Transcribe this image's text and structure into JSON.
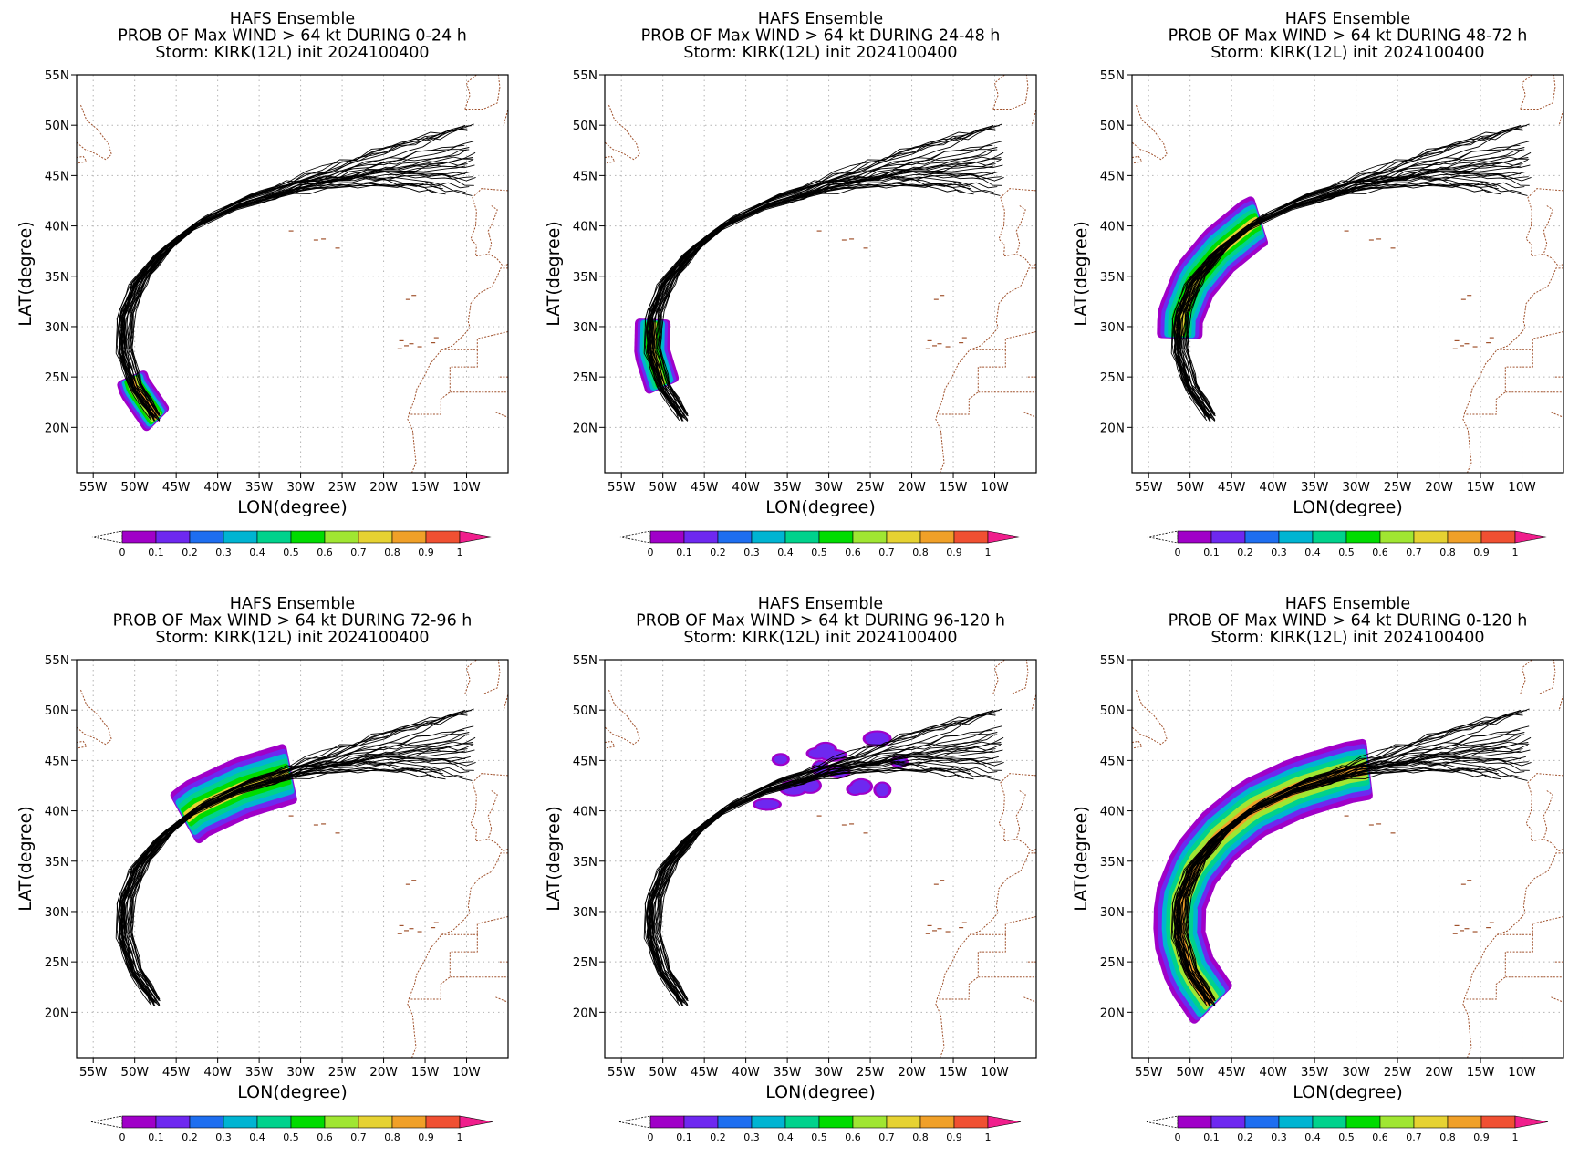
{
  "figure": {
    "panels": [
      {
        "title_lines": [
          "HAFS Ensemble",
          "PROB OF Max WIND > 64 kt DURING  0-24 h",
          "Storm: KIRK(12L) init 2024100400"
        ],
        "xlabel": "LON(degree)",
        "ylabel": "LAT(degree)"
      },
      {
        "title_lines": [
          "HAFS Ensemble",
          "PROB OF Max WIND > 64 kt DURING 24-48 h",
          "Storm: KIRK(12L) init 2024100400"
        ],
        "xlabel": "LON(degree)",
        "ylabel": "LAT(degree)"
      },
      {
        "title_lines": [
          "HAFS Ensemble",
          "PROB OF Max WIND > 64 kt DURING 48-72 h",
          "Storm: KIRK(12L) init 2024100400"
        ],
        "xlabel": "LON(degree)",
        "ylabel": "LAT(degree)"
      },
      {
        "title_lines": [
          "HAFS Ensemble",
          "PROB OF Max WIND > 64 kt DURING 72-96 h",
          "Storm: KIRK(12L) init 2024100400"
        ],
        "xlabel": "LON(degree)",
        "ylabel": "LAT(degree)"
      },
      {
        "title_lines": [
          "HAFS Ensemble",
          "PROB OF Max WIND > 64 kt DURING 96-120 h",
          "Storm: KIRK(12L) init 2024100400"
        ],
        "xlabel": "LON(degree)",
        "ylabel": "LAT(degree)"
      },
      {
        "title_lines": [
          "HAFS Ensemble",
          "PROB OF Max WIND > 64 kt DURING 0-120 h",
          "Storm: KIRK(12L) init 2024100400"
        ],
        "xlabel": "LON(degree)",
        "ylabel": "LAT(degree)"
      }
    ],
    "lon_ticks": [
      "55W",
      "50W",
      "45W",
      "40W",
      "35W",
      "30W",
      "25W",
      "20W",
      "15W",
      "10W"
    ],
    "lat_ticks": [
      "55N",
      "50N",
      "45N",
      "40N",
      "35N",
      "30N",
      "25N",
      "20N"
    ],
    "colorbar": {
      "labels": [
        "0",
        "0.1",
        "0.2",
        "0.3",
        "0.4",
        "0.5",
        "0.6",
        "0.7",
        "0.8",
        "0.9",
        "1"
      ],
      "colors": [
        "#a000c8",
        "#6e28f0",
        "#1e6ef0",
        "#00b4d2",
        "#00d28c",
        "#00dc00",
        "#a0e632",
        "#e6d232",
        "#f0a028",
        "#f05032",
        "#f01e8c"
      ]
    },
    "colors": {
      "track": "#000000",
      "border": "#a0522d",
      "grid": "#b4b4b4"
    }
  },
  "chart_data": {
    "type": "heatmap",
    "description_source": "map panels",
    "lon_range": [
      -57,
      -5
    ],
    "lat_range": [
      15.5,
      55
    ],
    "gridlines": true,
    "ensemble_mean_track": [
      [
        -47.5,
        21.0
      ],
      [
        -50.0,
        24.0
      ],
      [
        -51.3,
        27.5
      ],
      [
        -51.2,
        31.0
      ],
      [
        -49.5,
        34.5
      ],
      [
        -46.5,
        37.5
      ],
      [
        -42.5,
        40.2
      ],
      [
        -37.0,
        42.3
      ],
      [
        -31.0,
        43.8
      ],
      [
        -24.0,
        44.8
      ],
      [
        -17.0,
        45.3
      ],
      [
        -10.0,
        45.5
      ]
    ],
    "probability_windows": [
      {
        "window": "0-24 h",
        "lon_range": [
          -51.5,
          -47
        ],
        "lat_range": [
          21,
          26
        ],
        "max_prob": 1.0
      },
      {
        "window": "24-48 h",
        "lon_range": [
          -52.5,
          -49
        ],
        "lat_range": [
          24,
          32
        ],
        "max_prob": 0.9
      },
      {
        "window": "48-72 h",
        "lon_range": [
          -52,
          -43
        ],
        "lat_range": [
          29,
          40
        ],
        "max_prob": 0.9
      },
      {
        "window": "72-96 h",
        "lon_range": [
          -46,
          -33
        ],
        "lat_range": [
          36,
          46
        ],
        "max_prob": 0.9
      },
      {
        "window": "96-120 h",
        "lon_range": [
          -40,
          -18
        ],
        "lat_range": [
          39,
          50
        ],
        "max_prob": 0.3
      },
      {
        "window": "0-120 h",
        "lon_range": [
          -52,
          -18
        ],
        "lat_range": [
          21,
          50
        ],
        "max_prob": 1.0
      }
    ]
  }
}
